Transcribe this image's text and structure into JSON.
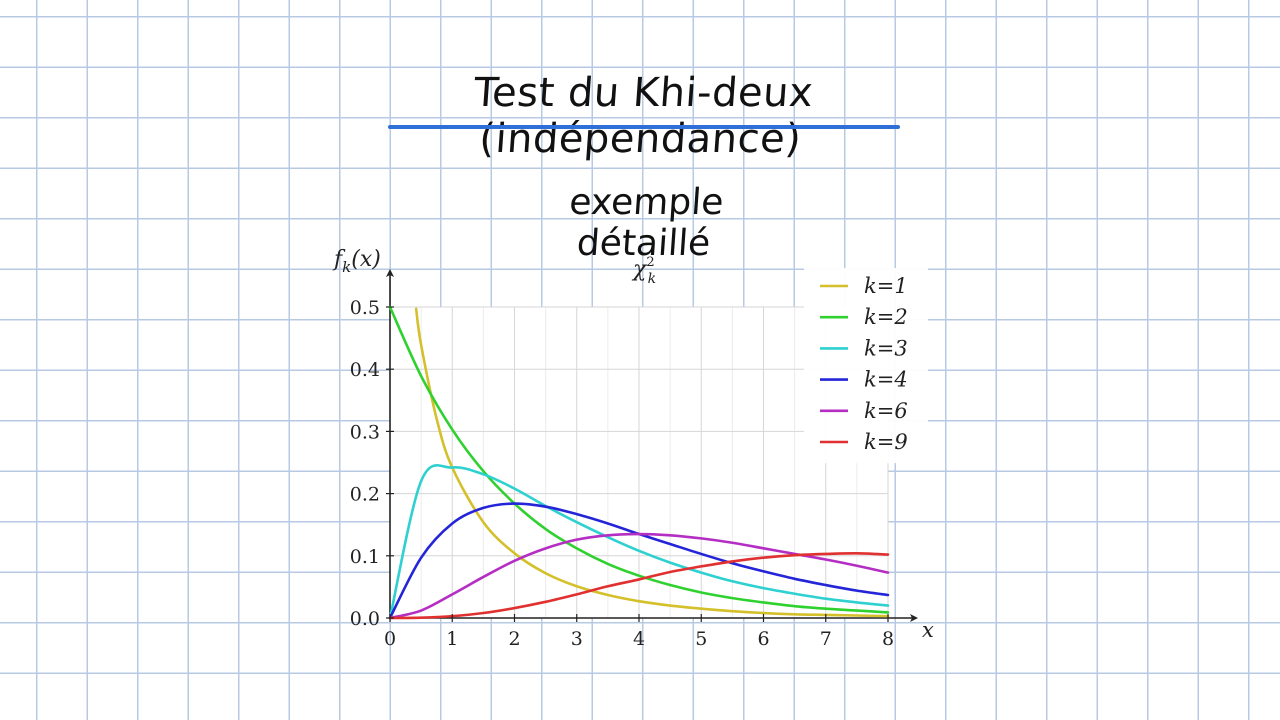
{
  "heading": {
    "title": "Test du Khi-deux (indépendance)",
    "subtitle": "exemple détaillé"
  },
  "colors": {
    "underline": "#2f6fd8",
    "paper_grid": "#b7c9e3"
  },
  "chart_data": {
    "type": "line",
    "title": "χ²_k",
    "xlabel": "x",
    "ylabel": "f_k(x)",
    "xlim": [
      0,
      8
    ],
    "ylim": [
      0,
      0.5
    ],
    "x_ticks": [
      "0",
      "1",
      "2",
      "3",
      "4",
      "5",
      "6",
      "7",
      "8"
    ],
    "y_ticks": [
      "0.0",
      "0.1",
      "0.2",
      "0.3",
      "0.4",
      "0.5"
    ],
    "grid": true,
    "legend_position": "top-right",
    "x": [
      0,
      0.5,
      1,
      1.5,
      2,
      2.5,
      3,
      3.5,
      4,
      4.5,
      5,
      5.5,
      6,
      6.5,
      7,
      7.5,
      8
    ],
    "series": [
      {
        "name": "k=1",
        "k": 1,
        "color": "#d4c02a",
        "x": [
          0.42,
          0.5,
          0.75,
          1,
          1.5,
          2,
          2.5,
          3,
          3.5,
          4,
          4.5,
          5,
          5.5,
          6,
          6.5,
          7,
          7.5,
          8
        ],
        "values": [
          0.497,
          0.439,
          0.32,
          0.242,
          0.154,
          0.104,
          0.072,
          0.051,
          0.037,
          0.027,
          0.02,
          0.015,
          0.011,
          0.008,
          0.006,
          0.005,
          0.004,
          0.003
        ]
      },
      {
        "name": "k=2",
        "k": 2,
        "color": "#2fd12f",
        "values": [
          0.5,
          0.389,
          0.303,
          0.236,
          0.184,
          0.143,
          0.112,
          0.087,
          0.068,
          0.053,
          0.041,
          0.032,
          0.025,
          0.019,
          0.015,
          0.012,
          0.009
        ]
      },
      {
        "name": "k=3",
        "k": 3,
        "color": "#2ed0d0",
        "values": [
          0.0,
          0.22,
          0.242,
          0.231,
          0.208,
          0.18,
          0.154,
          0.13,
          0.108,
          0.089,
          0.073,
          0.059,
          0.048,
          0.039,
          0.031,
          0.025,
          0.02
        ]
      },
      {
        "name": "k=4",
        "k": 4,
        "color": "#2424d8",
        "values": [
          0.0,
          0.097,
          0.152,
          0.177,
          0.184,
          0.179,
          0.167,
          0.152,
          0.135,
          0.119,
          0.103,
          0.088,
          0.075,
          0.063,
          0.053,
          0.044,
          0.037
        ]
      },
      {
        "name": "k=6",
        "k": 6,
        "color": "#b52ec4",
        "values": [
          0.0,
          0.012,
          0.038,
          0.066,
          0.092,
          0.112,
          0.126,
          0.133,
          0.135,
          0.133,
          0.128,
          0.121,
          0.112,
          0.103,
          0.094,
          0.084,
          0.073
        ]
      },
      {
        "name": "k=9",
        "k": 9,
        "color": "#e03030",
        "values": [
          0.0,
          0.0005,
          0.003,
          0.008,
          0.016,
          0.026,
          0.038,
          0.051,
          0.062,
          0.074,
          0.083,
          0.091,
          0.097,
          0.101,
          0.103,
          0.104,
          0.102
        ]
      }
    ]
  }
}
